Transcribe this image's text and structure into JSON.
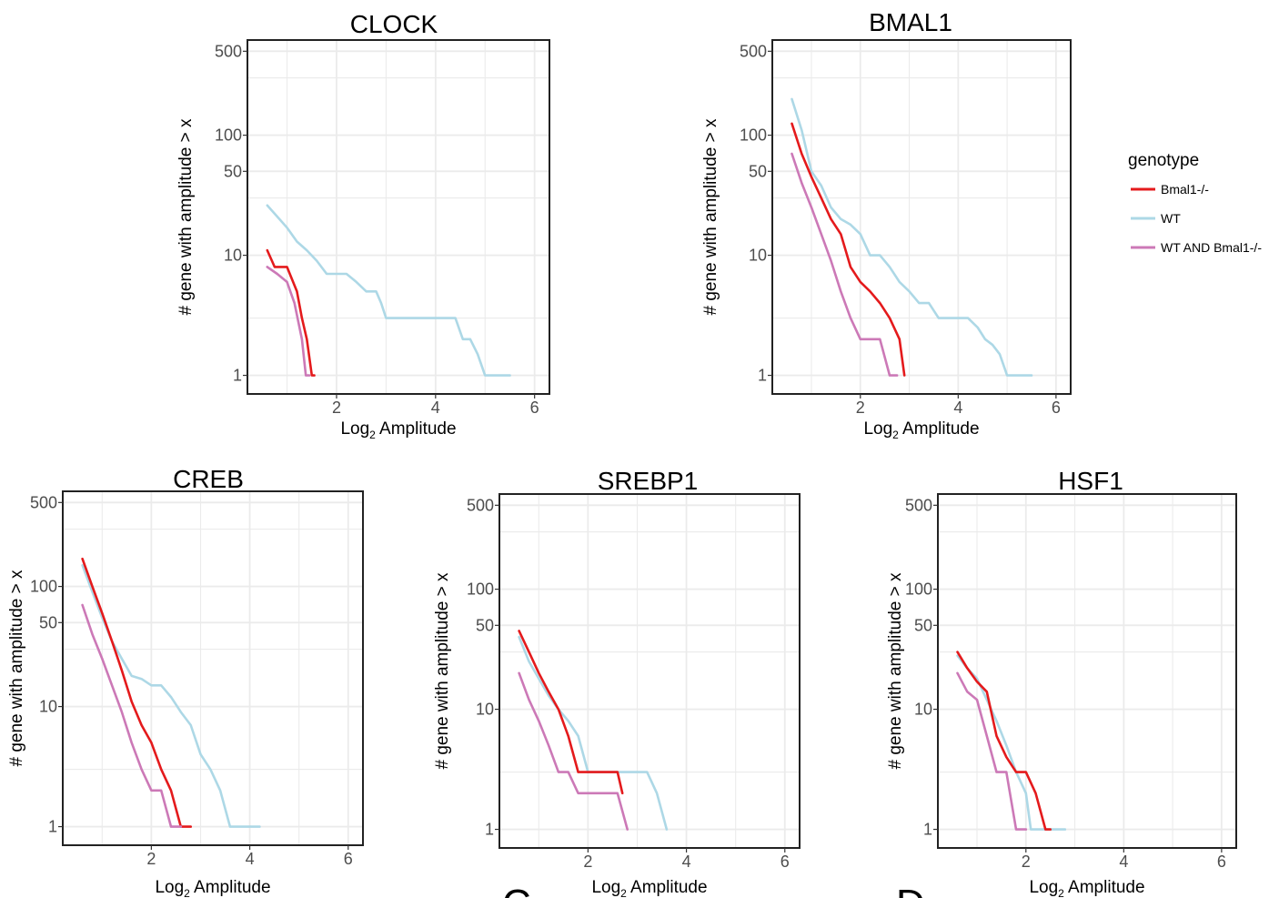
{
  "legend": {
    "title": "genotype",
    "entries": [
      {
        "label": "Bmal1-/-",
        "color": "#e41a1c"
      },
      {
        "label": "WT",
        "color": "#add8e6"
      },
      {
        "label": "WT AND Bmal1-/-",
        "color": "#cc79b7"
      }
    ]
  },
  "panel_letters": [
    "C",
    "D"
  ],
  "chart_data": [
    {
      "type": "line",
      "title": "CLOCK",
      "xlabel": "Log2 Amplitude",
      "ylabel": "# gene with amplitude > x",
      "xlim": [
        0.2,
        6.3
      ],
      "ylim": [
        0.7,
        620
      ],
      "yscale": "log",
      "xticks": [
        2,
        4,
        6
      ],
      "yticks": [
        1,
        10,
        50,
        100,
        500
      ],
      "grid": true,
      "series": [
        {
          "name": "WT",
          "x": [
            0.6,
            0.8,
            1.0,
            1.2,
            1.4,
            1.6,
            1.8,
            2.0,
            2.2,
            2.4,
            2.6,
            2.8,
            2.9,
            3.0,
            3.2,
            3.4,
            3.6,
            3.8,
            4.0,
            4.2,
            4.4,
            4.55,
            4.7,
            4.85,
            5.0,
            5.2,
            5.5
          ],
          "y": [
            26,
            21,
            17,
            13,
            11,
            9,
            7,
            7,
            7,
            6,
            5,
            5,
            4,
            3,
            3,
            3,
            3,
            3,
            3,
            3,
            3,
            2,
            2,
            1.5,
            1,
            1,
            1
          ]
        },
        {
          "name": "Bmal1-/-",
          "x": [
            0.6,
            0.75,
            1.0,
            1.2,
            1.3,
            1.4,
            1.5,
            1.55
          ],
          "y": [
            11,
            8,
            8,
            5,
            3,
            2,
            1,
            1
          ]
        },
        {
          "name": "WT AND Bmal1-/-",
          "x": [
            0.6,
            0.8,
            1.0,
            1.15,
            1.3,
            1.38,
            1.45
          ],
          "y": [
            8,
            7,
            6,
            4,
            2,
            1,
            1
          ]
        }
      ]
    },
    {
      "type": "line",
      "title": "BMAL1",
      "xlabel": "Log2 Amplitude",
      "ylabel": "# gene with amplitude > x",
      "xlim": [
        0.2,
        6.3
      ],
      "ylim": [
        0.7,
        620
      ],
      "yscale": "log",
      "xticks": [
        2,
        4,
        6
      ],
      "yticks": [
        1,
        10,
        50,
        100,
        500
      ],
      "grid": true,
      "series": [
        {
          "name": "WT",
          "x": [
            0.6,
            0.8,
            1.0,
            1.2,
            1.4,
            1.6,
            1.8,
            2.0,
            2.2,
            2.4,
            2.6,
            2.8,
            3.0,
            3.2,
            3.4,
            3.6,
            3.8,
            4.0,
            4.2,
            4.4,
            4.55,
            4.7,
            4.85,
            5.0,
            5.2,
            5.5
          ],
          "y": [
            200,
            110,
            50,
            38,
            25,
            20,
            18,
            15,
            10,
            10,
            8,
            6,
            5,
            4,
            4,
            3,
            3,
            3,
            3,
            2.5,
            2,
            1.8,
            1.5,
            1,
            1,
            1
          ]
        },
        {
          "name": "Bmal1-/-",
          "x": [
            0.6,
            0.8,
            1.0,
            1.2,
            1.4,
            1.6,
            1.8,
            2.0,
            2.2,
            2.4,
            2.6,
            2.8,
            2.9
          ],
          "y": [
            125,
            70,
            45,
            30,
            20,
            15,
            8,
            6,
            5,
            4,
            3,
            2,
            1
          ]
        },
        {
          "name": "WT AND Bmal1-/-",
          "x": [
            0.6,
            0.8,
            1.0,
            1.2,
            1.4,
            1.6,
            1.8,
            2.0,
            2.2,
            2.4,
            2.6,
            2.75
          ],
          "y": [
            70,
            40,
            25,
            15,
            9,
            5,
            3,
            2,
            2,
            2,
            1,
            1
          ]
        }
      ]
    },
    {
      "type": "line",
      "title": "CREB",
      "xlabel": "Log2 Amplitude",
      "ylabel": "# gene with amplitude > x",
      "xlim": [
        0.2,
        6.3
      ],
      "ylim": [
        0.7,
        620
      ],
      "yscale": "log",
      "xticks": [
        2,
        4,
        6
      ],
      "yticks": [
        1,
        10,
        50,
        100,
        500
      ],
      "grid": true,
      "series": [
        {
          "name": "WT",
          "x": [
            0.6,
            0.8,
            1.0,
            1.2,
            1.4,
            1.6,
            1.8,
            2.0,
            2.2,
            2.4,
            2.6,
            2.8,
            3.0,
            3.2,
            3.4,
            3.6,
            3.8,
            4.0,
            4.2
          ],
          "y": [
            150,
            90,
            55,
            35,
            25,
            18,
            17,
            15,
            15,
            12,
            9,
            7,
            4,
            3,
            2,
            1,
            1,
            1,
            1
          ]
        },
        {
          "name": "Bmal1-/-",
          "x": [
            0.6,
            0.8,
            1.0,
            1.2,
            1.4,
            1.6,
            1.8,
            2.0,
            2.2,
            2.4,
            2.6,
            2.8
          ],
          "y": [
            170,
            100,
            60,
            35,
            20,
            11,
            7,
            5,
            3,
            2,
            1,
            1
          ]
        },
        {
          "name": "WT AND Bmal1-/-",
          "x": [
            0.6,
            0.8,
            1.0,
            1.2,
            1.4,
            1.6,
            1.8,
            2.0,
            2.2,
            2.4,
            2.6
          ],
          "y": [
            70,
            40,
            25,
            15,
            9,
            5,
            3,
            2,
            2,
            1,
            1
          ]
        }
      ]
    },
    {
      "type": "line",
      "title": "SREBP1",
      "xlabel": "Log2 Amplitude",
      "ylabel": "# gene with amplitude > x",
      "xlim": [
        0.2,
        6.3
      ],
      "ylim": [
        0.7,
        620
      ],
      "yscale": "log",
      "xticks": [
        2,
        4,
        6
      ],
      "yticks": [
        1,
        10,
        50,
        100,
        500
      ],
      "grid": true,
      "series": [
        {
          "name": "WT",
          "x": [
            0.6,
            0.8,
            1.0,
            1.2,
            1.4,
            1.6,
            1.8,
            2.0,
            2.2,
            2.4,
            2.6,
            2.8,
            3.0,
            3.2,
            3.4,
            3.6
          ],
          "y": [
            40,
            25,
            18,
            13,
            10,
            8,
            6,
            3,
            3,
            3,
            3,
            3,
            3,
            3,
            2,
            1
          ]
        },
        {
          "name": "Bmal1-/-",
          "x": [
            0.6,
            0.8,
            1.0,
            1.2,
            1.4,
            1.6,
            1.8,
            2.0,
            2.2,
            2.4,
            2.6,
            2.7
          ],
          "y": [
            45,
            30,
            20,
            14,
            10,
            6,
            3,
            3,
            3,
            3,
            3,
            2
          ]
        },
        {
          "name": "WT AND Bmal1-/-",
          "x": [
            0.6,
            0.8,
            1.0,
            1.2,
            1.4,
            1.6,
            1.8,
            2.0,
            2.2,
            2.4,
            2.6,
            2.8
          ],
          "y": [
            20,
            12,
            8,
            5,
            3,
            3,
            2,
            2,
            2,
            2,
            2,
            1
          ]
        }
      ]
    },
    {
      "type": "line",
      "title": "HSF1",
      "xlabel": "Log2 Amplitude",
      "ylabel": "# gene with amplitude > x",
      "xlim": [
        0.2,
        6.3
      ],
      "ylim": [
        0.7,
        620
      ],
      "yscale": "log",
      "xticks": [
        2,
        4,
        6
      ],
      "yticks": [
        1,
        10,
        50,
        100,
        500
      ],
      "grid": true,
      "series": [
        {
          "name": "WT",
          "x": [
            0.6,
            0.8,
            1.0,
            1.2,
            1.4,
            1.6,
            1.8,
            2.0,
            2.1,
            2.2,
            2.4,
            2.6,
            2.8
          ],
          "y": [
            28,
            22,
            18,
            12,
            8,
            5,
            3,
            2,
            1,
            1,
            1,
            1,
            1
          ]
        },
        {
          "name": "Bmal1-/-",
          "x": [
            0.6,
            0.8,
            1.0,
            1.2,
            1.4,
            1.6,
            1.8,
            2.0,
            2.2,
            2.4,
            2.5
          ],
          "y": [
            30,
            22,
            17,
            14,
            6,
            4,
            3,
            3,
            2,
            1,
            1
          ]
        },
        {
          "name": "WT AND Bmal1-/-",
          "x": [
            0.6,
            0.8,
            1.0,
            1.2,
            1.4,
            1.6,
            1.8,
            2.0
          ],
          "y": [
            20,
            14,
            12,
            6,
            3,
            3,
            1,
            1
          ]
        }
      ]
    }
  ]
}
